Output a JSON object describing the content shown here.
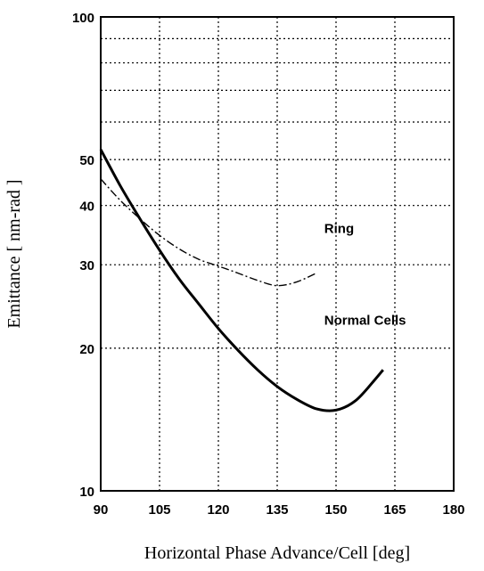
{
  "chart_data": {
    "type": "line",
    "title": "",
    "xlabel": "Horizontal Phase Advance/Cell [deg]",
    "ylabel": "Emittance [ nm-rad ]",
    "xlim": [
      90,
      180
    ],
    "ylim": [
      10,
      100
    ],
    "y_scale": "log",
    "grid": true,
    "x_ticks": [
      90,
      105,
      120,
      135,
      150,
      165,
      180
    ],
    "x_tick_labels": [
      "90",
      "105",
      "120",
      "135",
      "150",
      "165",
      "180"
    ],
    "y_ticks": [
      10,
      20,
      30,
      40,
      50,
      60,
      70,
      80,
      90,
      100
    ],
    "y_tick_labels": [
      "10",
      "20",
      "30",
      "40",
      "50",
      "",
      "",
      "",
      "",
      "100"
    ],
    "series": [
      {
        "name": "Ring",
        "style": "dash-dot",
        "x": [
          90,
          95,
          100,
          105,
          110,
          115,
          120,
          125,
          130,
          135,
          140,
          145
        ],
        "y": [
          45.5,
          41,
          37.5,
          34.6,
          32.4,
          30.8,
          29.8,
          28.8,
          27.8,
          27.1,
          27.6,
          28.8
        ]
      },
      {
        "name": "Normal Cells",
        "style": "solid",
        "x": [
          90,
          95,
          100,
          105,
          110,
          115,
          120,
          125,
          130,
          135,
          140,
          145,
          150,
          155,
          160,
          162
        ],
        "y": [
          52.5,
          44,
          37.5,
          32.2,
          28,
          24.8,
          22,
          19.8,
          18,
          16.6,
          15.6,
          14.9,
          14.8,
          15.5,
          17.2,
          18
        ]
      }
    ],
    "annotations": [
      {
        "text": "Ring",
        "x": 147,
        "y": 35
      },
      {
        "text": "Normal Cells",
        "x": 147,
        "y": 22.4
      }
    ]
  }
}
